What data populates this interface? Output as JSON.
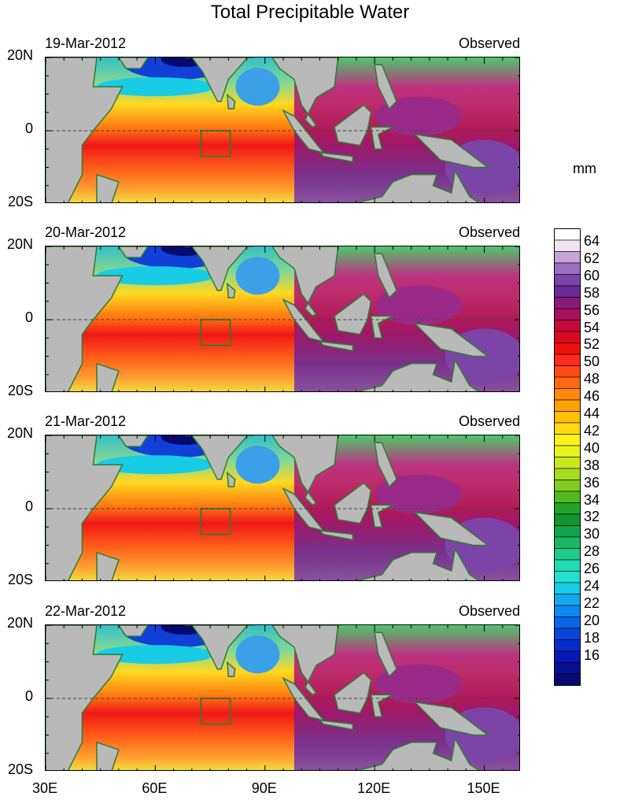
{
  "title": "Total Precipitable Water",
  "units": "mm",
  "panels": [
    {
      "date": "19-Mar-2012",
      "status": "Observed"
    },
    {
      "date": "20-Mar-2012",
      "status": "Observed"
    },
    {
      "date": "21-Mar-2012",
      "status": "Observed"
    },
    {
      "date": "22-Mar-2012",
      "status": "Observed"
    }
  ],
  "lat_labels": [
    "20N",
    "0",
    "20S"
  ],
  "lon_labels": [
    "30E",
    "60E",
    "90E",
    "120E",
    "150E"
  ],
  "colorbar": {
    "labels": [
      "64",
      "62",
      "60",
      "58",
      "56",
      "54",
      "52",
      "50",
      "48",
      "46",
      "44",
      "42",
      "40",
      "38",
      "36",
      "34",
      "32",
      "30",
      "28",
      "26",
      "24",
      "22",
      "20",
      "18",
      "16"
    ],
    "colors": [
      "#ffffff",
      "#ece4f2",
      "#c4a5d6",
      "#9a6ec0",
      "#7d44a8",
      "#6a2a98",
      "#8a1a7a",
      "#a8105c",
      "#c40a3c",
      "#dc0a1e",
      "#f01010",
      "#ff2a1a",
      "#ff4a16",
      "#ff6a10",
      "#ff8a0a",
      "#ffa008",
      "#ffbe08",
      "#ffda10",
      "#fff21a",
      "#e8f41c",
      "#c8ea1c",
      "#a8dc1e",
      "#80cc20",
      "#50ba20",
      "#22a428",
      "#10962c",
      "#12a44a",
      "#18b868",
      "#1ccc8a",
      "#20dcb0",
      "#20e0d2",
      "#18cce6",
      "#10a8ee",
      "#0c88ee",
      "#0a64e8",
      "#0846da",
      "#082ccc",
      "#0818b2",
      "#081092",
      "#060a6e"
    ]
  },
  "land_color": "#b9b9b9",
  "coast_color": "#2e7d32"
}
